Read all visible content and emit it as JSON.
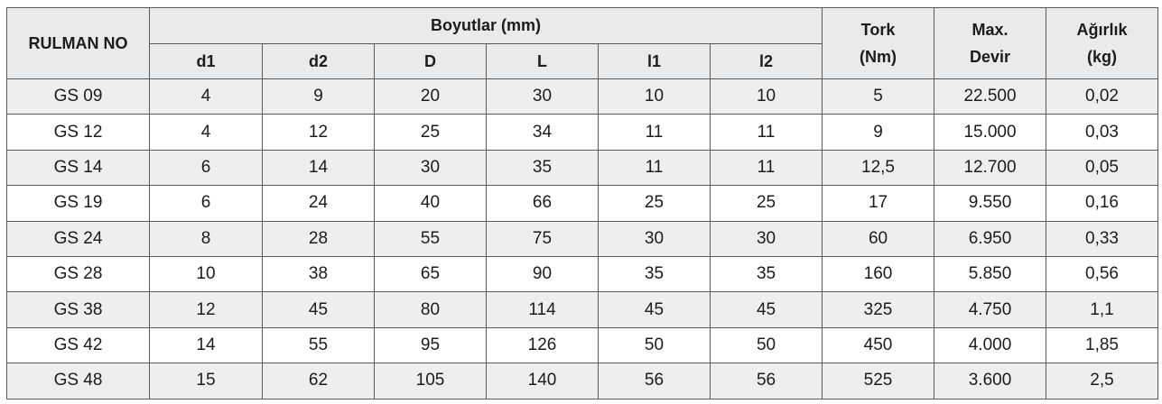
{
  "table": {
    "headers": {
      "bearing_no": "RULMAN NO",
      "dimensions_group": "Boyutlar (mm)",
      "dimension_cols": [
        "d1",
        "d2",
        "D",
        "L",
        "l1",
        "l2"
      ],
      "torque_line1": "Tork",
      "torque_line2": "(Nm)",
      "speed_line1": "Max.",
      "speed_line2": "Devir",
      "weight_line1": "Ağırlık",
      "weight_line2": "(kg)"
    },
    "rows": [
      [
        "GS 09",
        "4",
        "9",
        "20",
        "30",
        "10",
        "10",
        "5",
        "22.500",
        "0,02"
      ],
      [
        "GS 12",
        "4",
        "12",
        "25",
        "34",
        "11",
        "11",
        "9",
        "15.000",
        "0,03"
      ],
      [
        "GS 14",
        "6",
        "14",
        "30",
        "35",
        "11",
        "11",
        "12,5",
        "12.700",
        "0,05"
      ],
      [
        "GS 19",
        "6",
        "24",
        "40",
        "66",
        "25",
        "25",
        "17",
        "9.550",
        "0,16"
      ],
      [
        "GS 24",
        "8",
        "28",
        "55",
        "75",
        "30",
        "30",
        "60",
        "6.950",
        "0,33"
      ],
      [
        "GS 28",
        "10",
        "38",
        "65",
        "90",
        "35",
        "35",
        "160",
        "5.850",
        "0,56"
      ],
      [
        "GS 38",
        "12",
        "45",
        "80",
        "114",
        "45",
        "45",
        "325",
        "4.750",
        "1,1"
      ],
      [
        "GS 42",
        "14",
        "55",
        "95",
        "126",
        "50",
        "50",
        "450",
        "4.000",
        "1,85"
      ],
      [
        "GS 48",
        "15",
        "62",
        "105",
        "140",
        "56",
        "56",
        "525",
        "3.600",
        "2,5"
      ]
    ]
  }
}
